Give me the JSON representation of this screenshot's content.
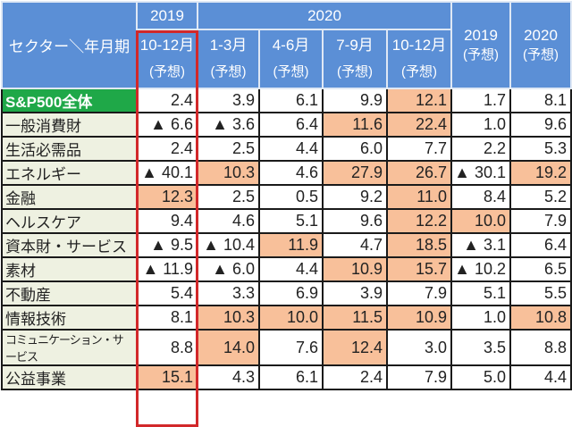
{
  "colors": {
    "header": "#5b8fd6",
    "label_bg": "#eef1e1",
    "total_label": "#1fa848",
    "highlight": "#f8c09a",
    "emphasis_border": "#d2282a"
  },
  "header": {
    "corner": "セクター＼年月期",
    "year_2019": "2019",
    "year_2020": "2020",
    "cols": [
      {
        "period": "10-12月",
        "note": "(予想)"
      },
      {
        "period": "1-3月",
        "note": "(予想)"
      },
      {
        "period": "4-6月",
        "note": "(予想)"
      },
      {
        "period": "7-9月",
        "note": "(予想)"
      },
      {
        "period": "10-12月",
        "note": "(予想)"
      },
      {
        "period": "2019",
        "note": "(予想)"
      },
      {
        "period": "2020",
        "note": "(予想)"
      }
    ]
  },
  "rows": [
    {
      "label": "S&P500全体",
      "cells": [
        {
          "v": "2.4"
        },
        {
          "v": "3.9"
        },
        {
          "v": "6.1"
        },
        {
          "v": "9.9"
        },
        {
          "v": "12.1",
          "hl": true
        },
        {
          "v": "1.7"
        },
        {
          "v": "8.1"
        }
      ]
    },
    {
      "label": "一般消費財",
      "cells": [
        {
          "v": "▲ 6.6"
        },
        {
          "v": "▲ 3.6"
        },
        {
          "v": "6.4"
        },
        {
          "v": "11.6",
          "hl": true
        },
        {
          "v": "22.4",
          "hl": true
        },
        {
          "v": "1.0"
        },
        {
          "v": "9.6"
        }
      ]
    },
    {
      "label": "生活必需品",
      "cells": [
        {
          "v": "2.4"
        },
        {
          "v": "2.5"
        },
        {
          "v": "4.4"
        },
        {
          "v": "6.0"
        },
        {
          "v": "7.7"
        },
        {
          "v": "2.2"
        },
        {
          "v": "5.3"
        }
      ]
    },
    {
      "label": "エネルギー",
      "cells": [
        {
          "v": "▲ 40.1"
        },
        {
          "v": "10.3",
          "hl": true
        },
        {
          "v": "4.6"
        },
        {
          "v": "27.9",
          "hl": true
        },
        {
          "v": "26.7",
          "hl": true
        },
        {
          "v": "▲ 30.1"
        },
        {
          "v": "19.2",
          "hl": true
        }
      ]
    },
    {
      "label": "金融",
      "cells": [
        {
          "v": "12.3",
          "hl": true
        },
        {
          "v": "2.5"
        },
        {
          "v": "0.5"
        },
        {
          "v": "9.2"
        },
        {
          "v": "11.0",
          "hl": true
        },
        {
          "v": "8.4"
        },
        {
          "v": "5.2"
        }
      ]
    },
    {
      "label": "ヘルスケア",
      "cells": [
        {
          "v": "9.4"
        },
        {
          "v": "4.6"
        },
        {
          "v": "5.1"
        },
        {
          "v": "9.6"
        },
        {
          "v": "12.2",
          "hl": true
        },
        {
          "v": "10.0",
          "hl": true
        },
        {
          "v": "7.9"
        }
      ]
    },
    {
      "label": "資本財・サービス",
      "cells": [
        {
          "v": "▲ 9.5"
        },
        {
          "v": "▲ 10.4"
        },
        {
          "v": "11.9",
          "hl": true
        },
        {
          "v": "4.7"
        },
        {
          "v": "18.5",
          "hl": true
        },
        {
          "v": "▲ 3.1"
        },
        {
          "v": "6.4"
        }
      ]
    },
    {
      "label": "素材",
      "cells": [
        {
          "v": "▲ 11.9"
        },
        {
          "v": "▲ 6.0"
        },
        {
          "v": "4.4"
        },
        {
          "v": "10.9",
          "hl": true
        },
        {
          "v": "15.7",
          "hl": true
        },
        {
          "v": "▲ 10.2"
        },
        {
          "v": "6.5"
        }
      ]
    },
    {
      "label": "不動産",
      "cells": [
        {
          "v": "5.4"
        },
        {
          "v": "3.3"
        },
        {
          "v": "6.9"
        },
        {
          "v": "3.9"
        },
        {
          "v": "7.9"
        },
        {
          "v": "5.1"
        },
        {
          "v": "5.5"
        }
      ]
    },
    {
      "label": "情報技術",
      "cells": [
        {
          "v": "8.1"
        },
        {
          "v": "10.3",
          "hl": true
        },
        {
          "v": "10.0",
          "hl": true
        },
        {
          "v": "11.5",
          "hl": true
        },
        {
          "v": "10.9",
          "hl": true
        },
        {
          "v": "1.0"
        },
        {
          "v": "10.8",
          "hl": true
        }
      ]
    },
    {
      "label": "コミュニケーション・サービス",
      "cells": [
        {
          "v": "8.8"
        },
        {
          "v": "14.0",
          "hl": true
        },
        {
          "v": "7.6"
        },
        {
          "v": "12.4",
          "hl": true
        },
        {
          "v": "3.0"
        },
        {
          "v": "3.5"
        },
        {
          "v": "8.8"
        }
      ]
    },
    {
      "label": "公益事業",
      "cells": [
        {
          "v": "15.1",
          "hl": true
        },
        {
          "v": "4.3"
        },
        {
          "v": "6.1"
        },
        {
          "v": "2.4"
        },
        {
          "v": "7.9"
        },
        {
          "v": "5.0"
        },
        {
          "v": "4.4"
        }
      ]
    }
  ]
}
